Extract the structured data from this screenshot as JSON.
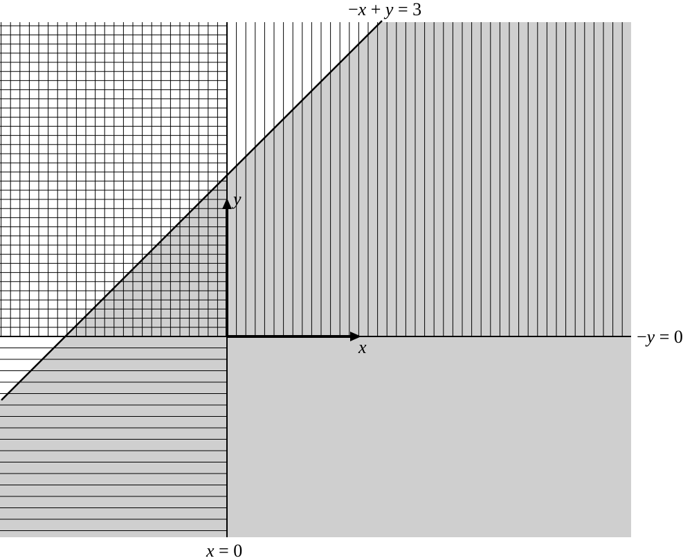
{
  "diagram": {
    "colors": {
      "shade": "#cfcfcf",
      "hatch": "#000000",
      "line": "#000000",
      "background": "#ffffff"
    },
    "lines": {
      "slanted": {
        "equation_left": "−",
        "var1": "x",
        "plus": " + ",
        "var2": "y",
        "equals": " = 3"
      },
      "horizontal": {
        "minus": "−",
        "var": "y",
        "equals": " = 0"
      },
      "vertical": {
        "var": "x",
        "equals": " = 0"
      }
    },
    "axes": {
      "x_label": "x",
      "y_label": "y"
    },
    "regions": {
      "vertical_hatch": "right of x = 0",
      "horizontal_hatch": "below −y = 0",
      "shaded": "feasible side of −x + y = 3"
    }
  }
}
